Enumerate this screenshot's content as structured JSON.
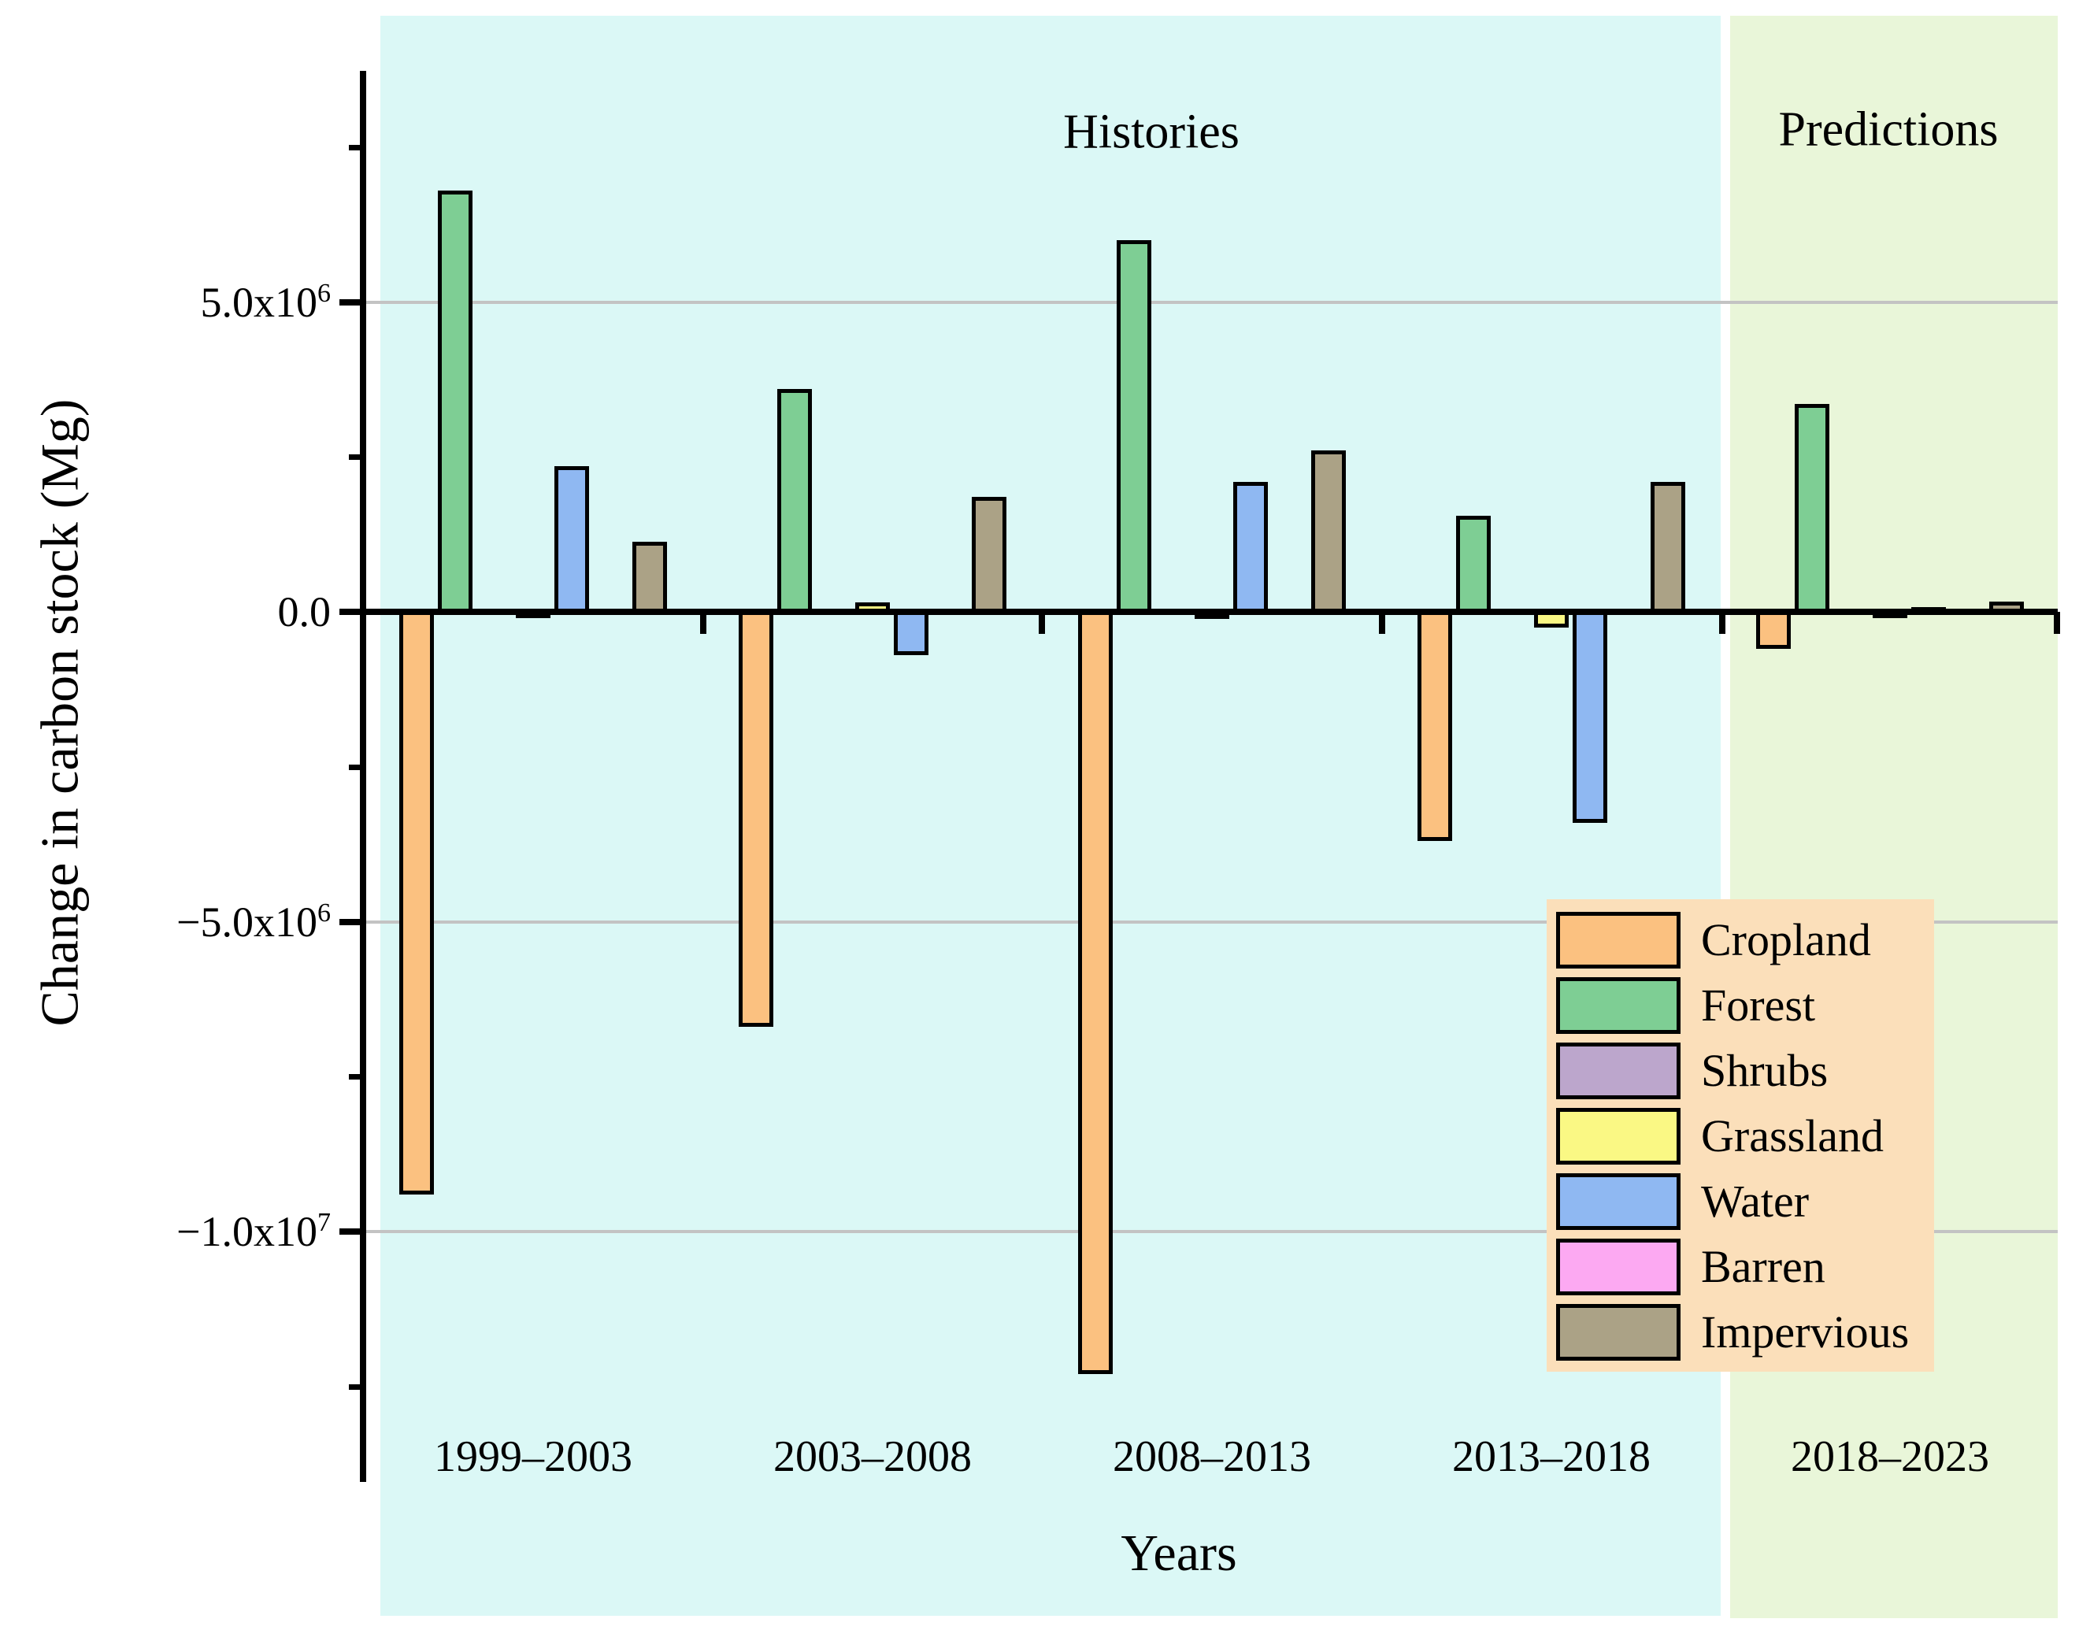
{
  "figure": {
    "sections": {
      "history": "Histories",
      "prediction": "Predictions"
    },
    "y_axis": {
      "title": "Change in carbon stock (Mg)",
      "tick_labels": [
        {
          "main": "5.0x10",
          "sup": "6",
          "value": 5000000
        },
        {
          "main": "0.0",
          "sup": "",
          "value": 0
        },
        {
          "main": "−5.0x10",
          "sup": "6",
          "value": -5000000
        },
        {
          "main": "−1.0x10",
          "sup": "7",
          "value": -10000000
        }
      ]
    },
    "x_axis": {
      "title": "Years",
      "tick_labels": [
        "1999–2003",
        "2003–2008",
        "2008–2013",
        "2013–2018",
        "2018–2023"
      ]
    },
    "colors": {
      "history_background": "#dbf8f6",
      "prediction_background": "#e9f6d9",
      "legend_background": "#fbdfba",
      "gridline": "#c3c3c3",
      "axis": "#000000"
    }
  },
  "legend": {
    "items": [
      {
        "label": "Cropland",
        "color": "#fbc180"
      },
      {
        "label": "Forest",
        "color": "#7ece94"
      },
      {
        "label": "Shrubs",
        "color": "#bca6cc"
      },
      {
        "label": "Grassland",
        "color": "#faf884"
      },
      {
        "label": "Water",
        "color": "#8fb8f2"
      },
      {
        "label": "Barren",
        "color": "#fca9f2"
      },
      {
        "label": "Impervious",
        "color": "#aba286"
      }
    ]
  },
  "chart_data": {
    "type": "bar",
    "title": "",
    "xlabel": "Years",
    "ylabel": "Change in carbon stock (Mg)",
    "categories": [
      "1999–2003",
      "2003–2008",
      "2008–2013",
      "2013–2018",
      "2018–2023"
    ],
    "series": [
      {
        "name": "Cropland",
        "color": "#fbc180",
        "values": [
          -9400000,
          -6700000,
          -12300000,
          -3700000,
          -600000
        ]
      },
      {
        "name": "Forest",
        "color": "#7ece94",
        "values": [
          6800000,
          3600000,
          6000000,
          1550000,
          3350000
        ]
      },
      {
        "name": "Shrubs",
        "color": "#bca6cc",
        "values": [
          0,
          0,
          0,
          0,
          0
        ]
      },
      {
        "name": "Grassland",
        "color": "#faf884",
        "values": [
          -100000,
          150000,
          -120000,
          -250000,
          -80000
        ]
      },
      {
        "name": "Water",
        "color": "#8fb8f2",
        "values": [
          2350000,
          -700000,
          2100000,
          -3400000,
          80000
        ]
      },
      {
        "name": "Barren",
        "color": "#fca9f2",
        "values": [
          0,
          0,
          0,
          0,
          0
        ]
      },
      {
        "name": "Impervious",
        "color": "#aba286",
        "values": [
          1130000,
          1850000,
          2600000,
          2100000,
          160000
        ]
      }
    ],
    "ylim": [
      -14000000,
      8500000
    ],
    "grid": "horizontal gridlines at 5.0e6, -5.0e6, -1.0e7",
    "legend_position": "inside lower right",
    "background_sections": [
      {
        "label": "Histories",
        "categories": [
          "1999–2003",
          "2013–2018"
        ],
        "color": "#dbf8f6"
      },
      {
        "label": "Predictions",
        "categories": [
          "2018–2023",
          "2018–2023"
        ],
        "color": "#e9f6d9"
      }
    ]
  }
}
